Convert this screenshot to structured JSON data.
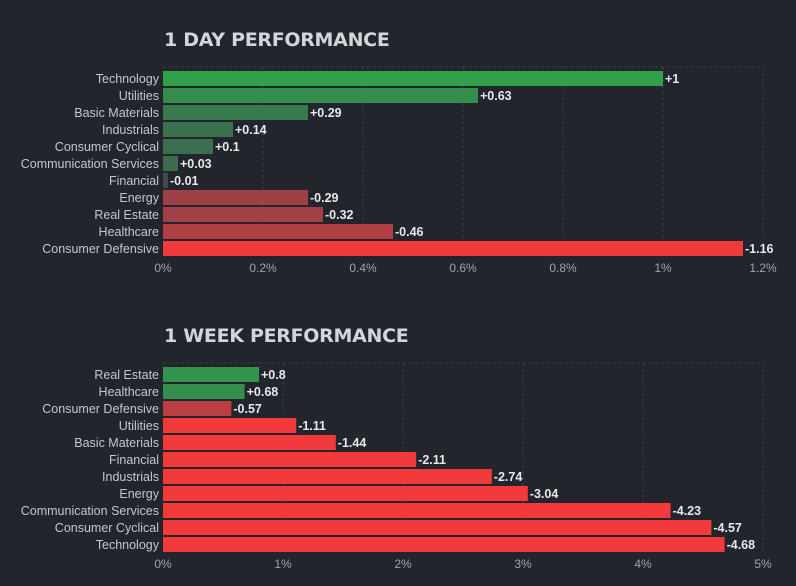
{
  "chart_data": [
    {
      "type": "bar",
      "orientation": "horizontal",
      "title": "1 DAY PERFORMANCE",
      "categories": [
        "Technology",
        "Utilities",
        "Basic Materials",
        "Industrials",
        "Consumer Cyclical",
        "Communication Services",
        "Financial",
        "Energy",
        "Real Estate",
        "Healthcare",
        "Consumer Defensive"
      ],
      "values": [
        1,
        0.63,
        0.29,
        0.14,
        0.1,
        0.03,
        -0.01,
        -0.29,
        -0.32,
        -0.46,
        -1.16
      ],
      "value_labels": [
        "+1",
        "+0.63",
        "+0.29",
        "+0.14",
        "+0.1",
        "+0.03",
        "-0.01",
        "-0.29",
        "-0.32",
        "-0.46",
        "-1.16"
      ],
      "bar_length_basis": "absolute value",
      "xlim": [
        0,
        1.2
      ],
      "ticks": [
        0,
        0.2,
        0.4,
        0.6,
        0.8,
        1,
        1.2
      ],
      "tick_labels": [
        "0%",
        "0.2%",
        "0.4%",
        "0.6%",
        "0.8%",
        "1%",
        "1.2%"
      ],
      "grid": true,
      "legend": "none"
    },
    {
      "type": "bar",
      "orientation": "horizontal",
      "title": "1 WEEK PERFORMANCE",
      "categories": [
        "Real Estate",
        "Healthcare",
        "Consumer Defensive",
        "Utilities",
        "Basic Materials",
        "Financial",
        "Industrials",
        "Energy",
        "Communication Services",
        "Consumer Cyclical",
        "Technology"
      ],
      "values": [
        0.8,
        0.68,
        -0.57,
        -1.11,
        -1.44,
        -2.11,
        -2.74,
        -3.04,
        -4.23,
        -4.57,
        -4.68
      ],
      "value_labels": [
        "+0.8",
        "+0.68",
        "-0.57",
        "-1.11",
        "-1.44",
        "-2.11",
        "-2.74",
        "-3.04",
        "-4.23",
        "-4.57",
        "-4.68"
      ],
      "bar_length_basis": "absolute value",
      "xlim": [
        0,
        5
      ],
      "ticks": [
        0,
        1,
        2,
        3,
        4,
        5
      ],
      "tick_labels": [
        "0%",
        "1%",
        "2%",
        "3%",
        "4%",
        "5%"
      ],
      "grid": true,
      "legend": "none"
    }
  ],
  "colors": {
    "background": "#22252c",
    "positive_strong": "#30a64a",
    "negative_strong": "#f23a3c",
    "neutral": "#434852",
    "grid": "#3a3e48"
  }
}
